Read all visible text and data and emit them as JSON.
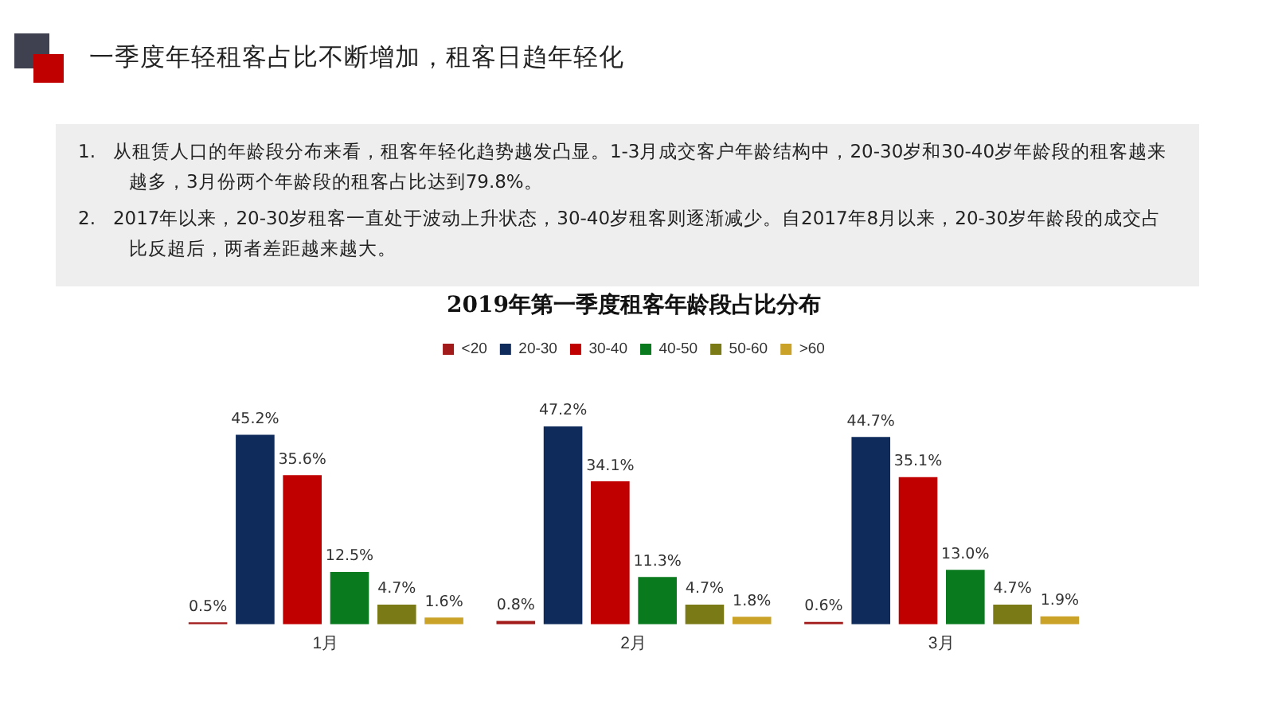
{
  "chart_data": {
    "type": "bar",
    "title": "一季度年轻租客占比不断增加，租客日趋年轻化",
    "subtitle": "2019年第一季度租客年龄段占比分布",
    "annotations": [
      "1.   从租赁人口的年龄段分布来看，租客年轻化趋势越发凸显。1-3月成交客户年龄结构中，20-30岁和30-40岁年龄段的租客越来越多，3月份两个年龄段的租客占比达到79.8%。",
      "2.   2017年以来，20-30岁租客一直处于波动上升状态，30-40岁租客则逐渐减少。自2017年8月以来，20-30岁年龄段的成交占比反超后，两者差距越来越大。"
    ],
    "categories": [
      "1月",
      "2月",
      "3月"
    ],
    "series": [
      {
        "name": "<20",
        "color": "#a31a1a",
        "values": [
          0.5,
          0.8,
          0.6
        ],
        "value_labels": [
          "0.5%",
          "0.8%",
          "0.6%"
        ]
      },
      {
        "name": "20-30",
        "color": "#0e2b5c",
        "values": [
          45.2,
          47.2,
          44.7
        ],
        "value_labels": [
          "45.2%",
          "47.2%",
          "44.7%"
        ]
      },
      {
        "name": "30-40",
        "color": "#c00000",
        "values": [
          35.6,
          34.1,
          35.1
        ],
        "value_labels": [
          "35.6%",
          "34.1%",
          "35.1%"
        ]
      },
      {
        "name": "40-50",
        "color": "#0a7a1e",
        "values": [
          12.5,
          11.3,
          13.0
        ],
        "value_labels": [
          "12.5%",
          "11.3%",
          "13.0%"
        ]
      },
      {
        "name": "50-60",
        "color": "#7a7a16",
        "values": [
          4.7,
          4.7,
          4.7
        ],
        "value_labels": [
          "4.7%",
          "4.7%",
          "4.7%"
        ]
      },
      {
        "name": ">60",
        "color": "#c9a227",
        "values": [
          1.6,
          1.8,
          1.9
        ],
        "value_labels": [
          "1.6%",
          "1.8%",
          "1.9%"
        ]
      }
    ],
    "legend": "top",
    "grid": false,
    "tick_labels": "x"
  }
}
